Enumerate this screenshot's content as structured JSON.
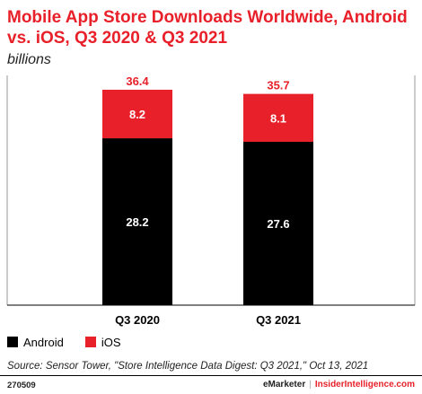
{
  "title": "Mobile App Store Downloads Worldwide, Android vs. iOS, Q3 2020 & Q3 2021",
  "subtitle": "billions",
  "source": "Source: Sensor Tower, \"Store Intelligence Data Digest: Q3 2021,\" Oct 13, 2021",
  "chart_id": "270509",
  "brand": {
    "emarketer": "eMarketer",
    "separator": "|",
    "insider": "InsiderIntelligence.com"
  },
  "colors": {
    "Android": "#000000",
    "iOS": "#e8202a",
    "total_label": "#e8202a"
  },
  "chart_data": {
    "type": "bar",
    "stacked": true,
    "categories": [
      "Q3 2020",
      "Q3 2021"
    ],
    "series": [
      {
        "name": "Android",
        "values": [
          28.2,
          27.6
        ]
      },
      {
        "name": "iOS",
        "values": [
          8.2,
          8.1
        ]
      }
    ],
    "totals": [
      36.4,
      35.7
    ],
    "ylim": [
      0,
      36.4
    ],
    "grid": false,
    "legend": "bottom-left"
  }
}
